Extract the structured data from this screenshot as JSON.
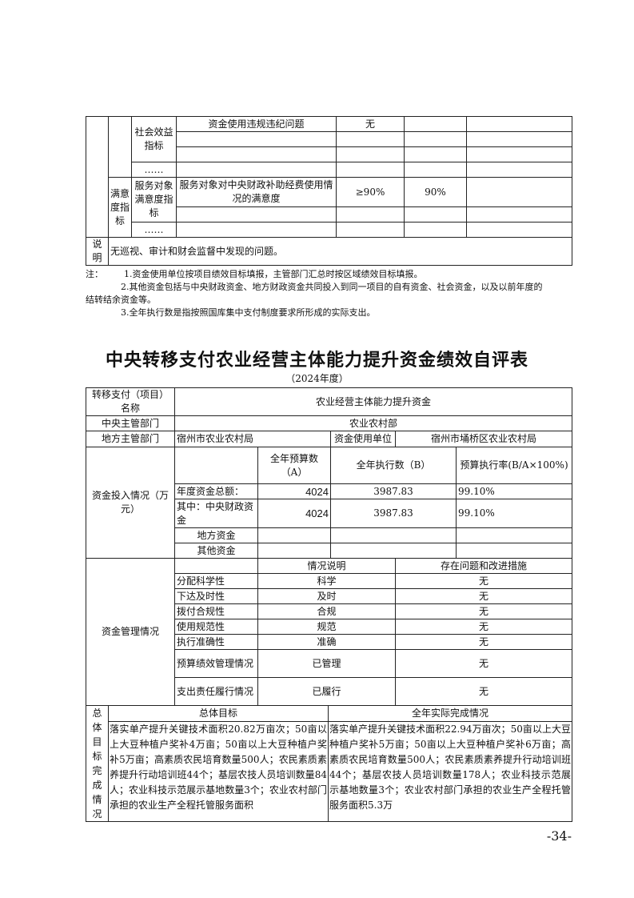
{
  "top_table": {
    "social_label": "社会效益指标",
    "violation_item": "资金使用违规违纪问题",
    "violation_value": "无",
    "ellipsis": "……",
    "satisfaction_label": "满意度指标",
    "service_label": "服务对象满意度指标",
    "service_item": "服务对象对中央财政补助经费使用情况的满意度",
    "service_target": "≥90%",
    "service_actual": "90%",
    "note_label": "说明",
    "note_text": "无巡视、审计和财会监督中发现的问题。"
  },
  "notes": {
    "prefix": "注：",
    "n1": "1.资金使用单位按项目绩效目标填报，主管部门汇总时按区域绩效目标填报。",
    "n2a": "2.其他资金包括与中央财政资金、地方财政资金共同投入到同一项目的自有资金、社会资金，以及以前年度的",
    "n2b": "结转结余资金等。",
    "n3": "3.全年执行数是指按照国库集中支付制度要求所形成的实际支出。"
  },
  "title": "中央转移支付农业经营主体能力提升资金绩效自评表",
  "subtitle": "（2024年度）",
  "main_table": {
    "name_label": "转移支付（项目）名称",
    "name_value": "农业经营主体能力提升资金",
    "central_dept_label": "中央主管部门",
    "central_dept_value": "农业农村部",
    "local_dept_label": "地方主管部门",
    "local_dept_value": "宿州市农业农村局",
    "user_label": "资金使用单位",
    "user_value": "宿州市埇桥区农业农村局",
    "funds_label": "资金投入情况（万元）",
    "col_budget": "全年预算数（A）",
    "col_exec": "全年执行数（B）",
    "col_rate": "预算执行率(B/A×100%)",
    "funds_rows": [
      {
        "label": "年度资金总额：",
        "budget": "4024",
        "exec": "3987.83",
        "rate": "99.10%"
      },
      {
        "label": "其中：中央财政资金",
        "budget": "4024",
        "exec": "3987.83",
        "rate": "99.10%"
      },
      {
        "label": "地方资金",
        "budget": "",
        "exec": "",
        "rate": ""
      },
      {
        "label": "其他资金",
        "budget": "",
        "exec": "",
        "rate": ""
      }
    ],
    "mgmt_label": "资金管理情况",
    "col_desc": "情况说明",
    "col_issue": "存在问题和改进措施",
    "mgmt_rows": [
      {
        "label": "分配科学性",
        "desc": "科学",
        "issue": "无"
      },
      {
        "label": "下达及时性",
        "desc": "及时",
        "issue": "无"
      },
      {
        "label": "拨付合规性",
        "desc": "合规",
        "issue": "无"
      },
      {
        "label": "使用规范性",
        "desc": "规范",
        "issue": "无"
      },
      {
        "label": "执行准确性",
        "desc": "准确",
        "issue": "无"
      },
      {
        "label": "预算绩效管理情况",
        "desc": "已管理",
        "issue": "无"
      },
      {
        "label": "支出责任履行情况",
        "desc": "已履行",
        "issue": "无"
      }
    ]
  },
  "goal_table": {
    "side_label": "总体目标完成情况",
    "col_goal": "总体目标",
    "col_actual": "全年实际完成情况",
    "goal_text": "落实单产提升关键技术面积20.82万亩次；50亩以上大豆种植户奖补4万亩；50亩以上大豆种植户奖补5万亩；高素质农民培育数量500人；农民素质素养提升行动培训班44个；基层农技人员培训数量84人；农业科技示范展示基地数量3个；农业农村部门承担的农业生产全程托管服务面积",
    "actual_text": "落实单产提升关键技术面积22.94万亩次；50亩以上大豆种植户奖补5万亩；50亩以上大豆种植户奖补6万亩；高素质农民培育数量500人；农民素质素养提升行动培训班44个；基层农技人员培训数量178人；农业科技示范展示基地数量3个；农业农村部门承担的农业生产全程托管服务面积5.3万"
  },
  "page_number": "-34-"
}
